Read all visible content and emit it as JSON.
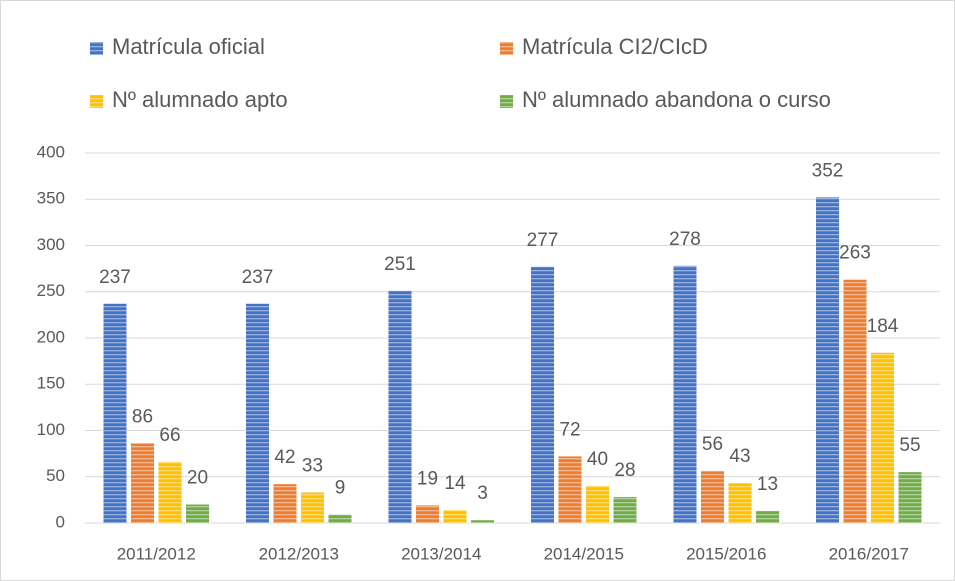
{
  "chart_data": {
    "type": "bar",
    "categories": [
      "2011/2012",
      "2012/2013",
      "2013/2014",
      "2014/2015",
      "2015/2016",
      "2016/2017"
    ],
    "series": [
      {
        "name": "Matrícula oficial",
        "color": "#4472c4",
        "values": [
          237,
          237,
          251,
          277,
          278,
          352
        ]
      },
      {
        "name": "Matrícula CI2/CIcD",
        "color": "#ed7d31",
        "values": [
          86,
          42,
          19,
          72,
          56,
          263
        ]
      },
      {
        "name": "Nº alumnado apto",
        "color": "#ffc000",
        "values": [
          66,
          33,
          14,
          40,
          43,
          184
        ]
      },
      {
        "name": "Nº alumnado abandona o curso",
        "color": "#70ad47",
        "values": [
          20,
          9,
          3,
          28,
          13,
          55
        ]
      }
    ],
    "ylim": [
      0,
      400
    ],
    "yticks": [
      0,
      50,
      100,
      150,
      200,
      250,
      300,
      350,
      400
    ],
    "grid": true,
    "legend": "top"
  }
}
